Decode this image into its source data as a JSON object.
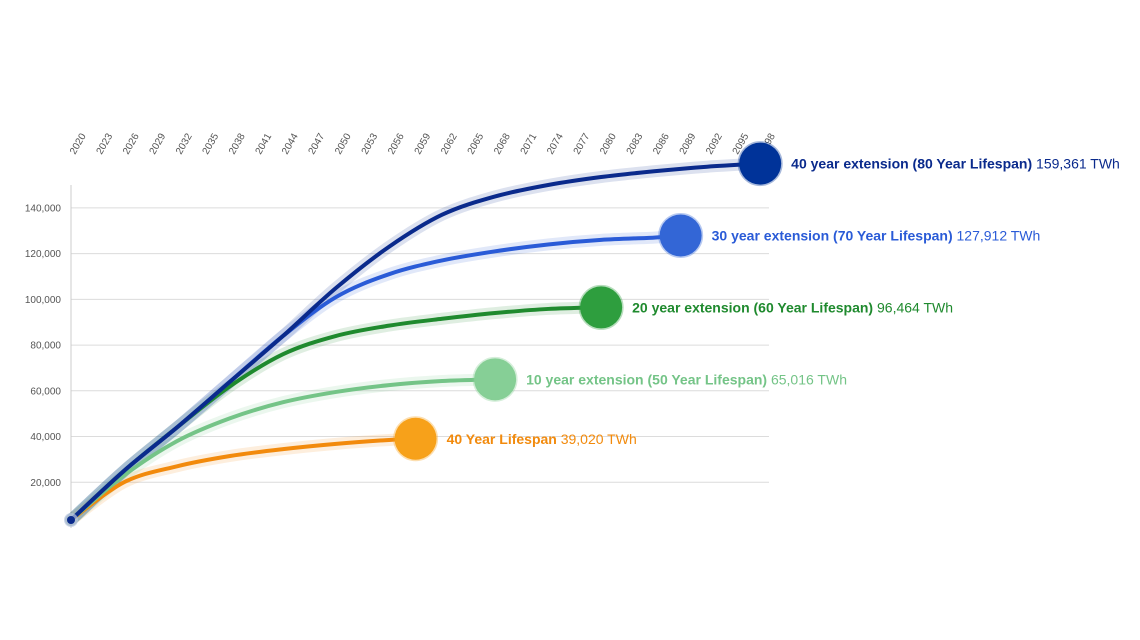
{
  "chart_data": {
    "type": "line",
    "title": "",
    "xlabel": "",
    "ylabel": "",
    "x_ticks": [
      "2020",
      "2023",
      "2026",
      "2029",
      "2032",
      "2035",
      "2038",
      "2041",
      "2044",
      "2047",
      "2050",
      "2053",
      "2056",
      "2059",
      "2062",
      "2065",
      "2068",
      "2071",
      "2074",
      "2077",
      "2080",
      "2083",
      "2086",
      "2089",
      "2092",
      "2095",
      "2098"
    ],
    "y_ticks": [
      "20,000",
      "40,000",
      "60,000",
      "80,000",
      "100,000",
      "120,000",
      "140,000"
    ],
    "xlim": [
      2020,
      2099
    ],
    "ylim": [
      0,
      150000
    ],
    "grid": true,
    "start": {
      "x": 2020,
      "y": 3500
    },
    "series": [
      {
        "name": "40 year extension (80 Year Lifespan)",
        "value_text": "159,361 TWh",
        "color": "#0a2a8c",
        "marker_color": "#003399",
        "points": [
          [
            2020,
            3500
          ],
          [
            2026,
            25000
          ],
          [
            2032,
            44000
          ],
          [
            2038,
            64000
          ],
          [
            2044,
            84000
          ],
          [
            2050,
            105000
          ],
          [
            2056,
            123000
          ],
          [
            2062,
            137000
          ],
          [
            2068,
            145000
          ],
          [
            2074,
            150000
          ],
          [
            2080,
            153500
          ],
          [
            2086,
            156000
          ],
          [
            2092,
            158000
          ],
          [
            2098,
            159361
          ]
        ]
      },
      {
        "name": "30 year extension (70 Year Lifespan)",
        "value_text": "127,912 TWh",
        "color": "#2a5bd7",
        "marker_color": "#3366d6",
        "points": [
          [
            2020,
            3500
          ],
          [
            2026,
            25000
          ],
          [
            2032,
            44000
          ],
          [
            2038,
            64000
          ],
          [
            2044,
            84000
          ],
          [
            2050,
            101000
          ],
          [
            2056,
            111000
          ],
          [
            2062,
            117000
          ],
          [
            2068,
            121000
          ],
          [
            2074,
            124000
          ],
          [
            2080,
            126000
          ],
          [
            2086,
            127000
          ],
          [
            2089,
            127912
          ]
        ]
      },
      {
        "name": "20 year extension (60 Year Lifespan)",
        "value_text": "96,464 TWh",
        "color": "#1f8a2e",
        "marker_color": "#2e9e3e",
        "points": [
          [
            2020,
            3500
          ],
          [
            2026,
            25000
          ],
          [
            2032,
            44000
          ],
          [
            2038,
            62000
          ],
          [
            2044,
            76000
          ],
          [
            2050,
            84000
          ],
          [
            2056,
            88500
          ],
          [
            2062,
            91500
          ],
          [
            2068,
            94000
          ],
          [
            2074,
            95800
          ],
          [
            2080,
            96464
          ]
        ]
      },
      {
        "name": "10 year extension (50 Year Lifespan)",
        "value_text": "65,016 TWh",
        "color": "#74c487",
        "marker_color": "#86cf96",
        "points": [
          [
            2020,
            3500
          ],
          [
            2026,
            23000
          ],
          [
            2032,
            38000
          ],
          [
            2038,
            48000
          ],
          [
            2044,
            55000
          ],
          [
            2050,
            59500
          ],
          [
            2056,
            62500
          ],
          [
            2062,
            64300
          ],
          [
            2068,
            65016
          ]
        ]
      },
      {
        "name": "40 Year Lifespan",
        "value_text": "39,020 TWh",
        "color": "#f28a0c",
        "marker_color": "#f7a11a",
        "points": [
          [
            2020,
            3500
          ],
          [
            2026,
            20000
          ],
          [
            2032,
            27000
          ],
          [
            2038,
            31500
          ],
          [
            2044,
            34500
          ],
          [
            2050,
            36800
          ],
          [
            2056,
            38500
          ],
          [
            2059,
            39020
          ]
        ]
      }
    ]
  }
}
